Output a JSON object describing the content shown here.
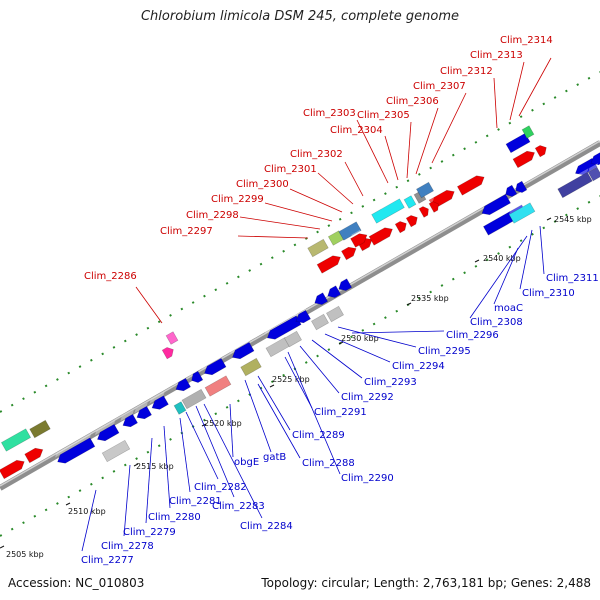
{
  "header": {
    "title": "Chlorobium limicola DSM 245, complete genome"
  },
  "footer": {
    "accession": "Accession: NC_010803",
    "summary": "Topology: circular; Length: 2,763,181 bp; Genes: 2,488"
  },
  "colors": {
    "forward_label": "#cc0000",
    "reverse_label": "#0000cc",
    "forward_gene": "#ee0000",
    "reverse_gene": "#0000dd",
    "track_dots": "#2a8a2a",
    "backbone": "#9a9a9a"
  },
  "scale": {
    "ticks": [
      "2505 kbp",
      "2510 kbp",
      "2515 kbp",
      "2520 kbp",
      "2525 kbp",
      "2530 kbp",
      "2535 kbp",
      "2540 kbp",
      "2545 kbp"
    ]
  },
  "forward_labels": [
    "Clim_2286",
    "Clim_2297",
    "Clim_2298",
    "Clim_2299",
    "Clim_2300",
    "Clim_2301",
    "Clim_2302",
    "Clim_2303",
    "Clim_2304",
    "Clim_2305",
    "Clim_2306",
    "Clim_2307",
    "Clim_2312",
    "Clim_2313",
    "Clim_2314"
  ],
  "reverse_labels": [
    "Clim_2277",
    "Clim_2278",
    "Clim_2279",
    "Clim_2280",
    "Clim_2281",
    "Clim_2282",
    "Clim_2283",
    "Clim_2284",
    "obgE",
    "gatB",
    "Clim_2288",
    "Clim_2289",
    "Clim_2290",
    "Clim_2291",
    "Clim_2292",
    "Clim_2293",
    "Clim_2294",
    "Clim_2295",
    "Clim_2296",
    "moaC",
    "Clim_2308",
    "Clim_2310",
    "Clim_2311"
  ]
}
